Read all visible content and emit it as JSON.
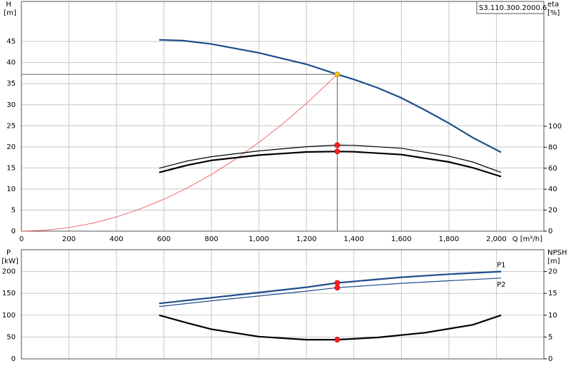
{
  "chart_data": [
    {
      "type": "line",
      "title": "S3.110.300.2000.6.",
      "ylabel": "H",
      "ylabel_unit": "[m]",
      "y2label": "eta",
      "y2label_unit": "[%]",
      "xlabel": "Q [m³/h]",
      "xlim": [
        0,
        2200
      ],
      "ylim": [
        0,
        54.5
      ],
      "y2lim": [
        0,
        219
      ],
      "xticks": [
        0,
        200,
        400,
        600,
        800,
        {
          "value": 1000,
          "label": "1,000"
        },
        {
          "value": 1200,
          "label": "1,200"
        },
        {
          "value": 1400,
          "label": "1,400"
        },
        {
          "value": 1600,
          "label": "1,600"
        },
        {
          "value": 1800,
          "label": "1,800"
        },
        {
          "value": 2000,
          "label": "2,000"
        }
      ],
      "yticks": [
        0,
        5,
        10,
        15,
        20,
        25,
        30,
        35,
        40,
        45
      ],
      "y2ticks": [
        0,
        20,
        40,
        60,
        80,
        100
      ],
      "grid": true,
      "series": [
        {
          "color": "#1f4e8c",
          "style": "thick",
          "x": [
            580,
            680,
            800,
            1000,
            1200,
            1330,
            1400,
            1500,
            1600,
            1700,
            1800,
            1900,
            2020
          ],
          "values": [
            45.4,
            45.2,
            44.4,
            42.3,
            39.6,
            37.2,
            36,
            34,
            31.6,
            28.7,
            25.6,
            22.2,
            18.7
          ]
        },
        {
          "color": "#f04848",
          "style": "hair",
          "x": [
            0,
            100,
            200,
            300,
            400,
            500,
            600,
            700,
            800,
            900,
            1000,
            1100,
            1200,
            1330
          ],
          "values": [
            0,
            0.21,
            0.84,
            1.89,
            3.36,
            5.26,
            7.57,
            10.3,
            13.46,
            17.03,
            21.03,
            25.45,
            30.28,
            37.2
          ]
        },
        {
          "color": "#000000",
          "style": "thin",
          "axis": "y2",
          "x": [
            580,
            700,
            800,
            1000,
            1200,
            1330,
            1400,
            1600,
            1800,
            1900,
            2020
          ],
          "values": [
            60,
            67,
            71,
            76.5,
            80.5,
            82,
            81.8,
            79,
            71.5,
            66,
            56
          ]
        },
        {
          "color": "#000000",
          "style": "thick",
          "axis": "y2",
          "x": [
            580,
            700,
            800,
            1000,
            1200,
            1330,
            1400,
            1600,
            1800,
            1900,
            2020
          ],
          "values": [
            56,
            63,
            67.5,
            72.5,
            75.5,
            76,
            75.7,
            73,
            66,
            60.5,
            52
          ]
        },
        {
          "color": "#f5c518",
          "marker": true,
          "crosshair": true,
          "x": [
            1330
          ],
          "values": [
            37.2
          ]
        },
        {
          "color": "#ff2020",
          "marker": true,
          "axis": "y2",
          "x": [
            1330
          ],
          "values": [
            82
          ]
        },
        {
          "color": "#ff2020",
          "marker": true,
          "axis": "y2",
          "x": [
            1330
          ],
          "values": [
            76
          ]
        }
      ]
    },
    {
      "type": "line",
      "ylabel": "P",
      "ylabel_unit": "[kW]",
      "y2label": "NPSH",
      "y2label_unit": "[m]",
      "xlim": [
        0,
        2200
      ],
      "ylim": [
        0,
        250
      ],
      "y2lim": [
        0,
        25
      ],
      "yticks": [
        0,
        50,
        100,
        150,
        200
      ],
      "y2ticks": [
        0,
        5,
        10,
        15,
        20
      ],
      "grid": true,
      "series": [
        {
          "name": "P1",
          "color": "#1f4e8c",
          "style": "thick",
          "x": [
            580,
            800,
            1000,
            1200,
            1330,
            1600,
            1800,
            2020
          ],
          "values": [
            127,
            140,
            152,
            164,
            174,
            187,
            194,
            200
          ]
        },
        {
          "name": "P2",
          "color": "#1f4e8c",
          "style": "thin",
          "x": [
            580,
            800,
            1000,
            1200,
            1330,
            1600,
            1800,
            2020
          ],
          "values": [
            120,
            133,
            144,
            155,
            163,
            173,
            179,
            185
          ]
        },
        {
          "color": "#000000",
          "style": "thick",
          "axis": "y2",
          "x": [
            580,
            700,
            800,
            1000,
            1200,
            1330,
            1500,
            1700,
            1900,
            2020
          ],
          "values": [
            10,
            8.2,
            6.8,
            5.1,
            4.4,
            4.4,
            4.9,
            6,
            7.8,
            10
          ]
        },
        {
          "color": "#ff2020",
          "marker": true,
          "x": [
            1330
          ],
          "values": [
            174
          ]
        },
        {
          "color": "#ff2020",
          "marker": true,
          "x": [
            1330
          ],
          "values": [
            163
          ]
        },
        {
          "color": "#ff2020",
          "marker": true,
          "axis": "y2",
          "x": [
            1330
          ],
          "values": [
            4.4
          ]
        }
      ]
    }
  ]
}
